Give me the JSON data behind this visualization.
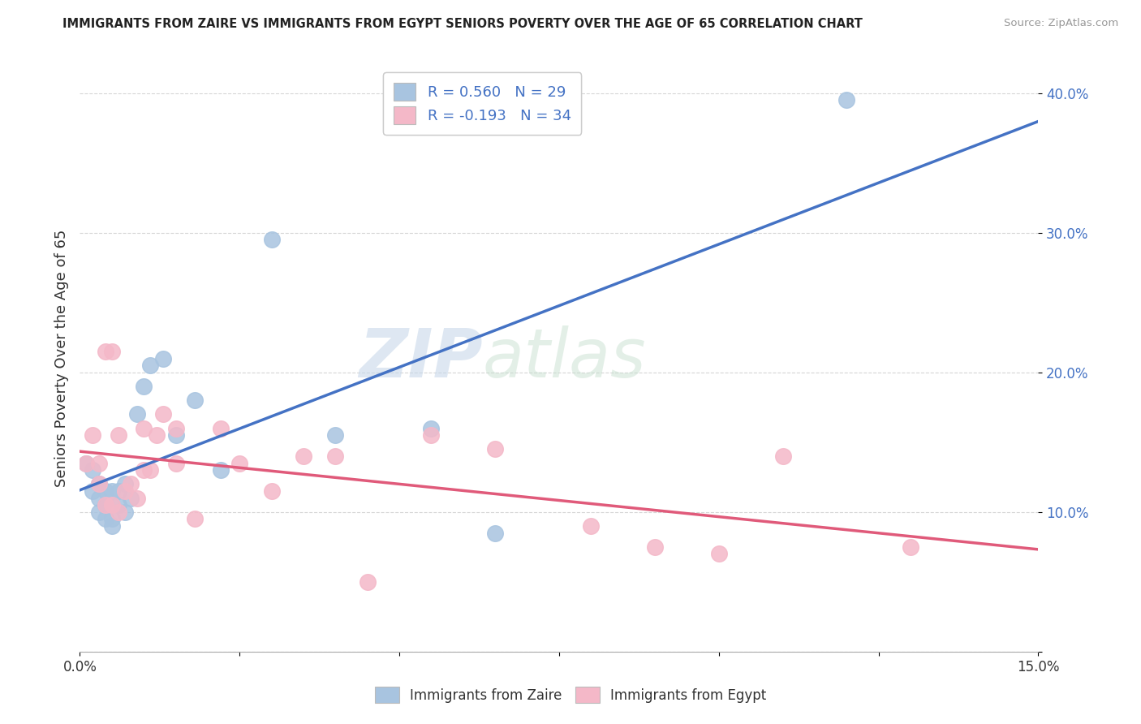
{
  "title": "IMMIGRANTS FROM ZAIRE VS IMMIGRANTS FROM EGYPT SENIORS POVERTY OVER THE AGE OF 65 CORRELATION CHART",
  "source": "Source: ZipAtlas.com",
  "ylabel": "Seniors Poverty Over the Age of 65",
  "xlim": [
    0,
    0.15
  ],
  "ylim": [
    0,
    0.42
  ],
  "zaire_R": 0.56,
  "zaire_N": 29,
  "egypt_R": -0.193,
  "egypt_N": 34,
  "zaire_color": "#a8c4e0",
  "egypt_color": "#f4b8c8",
  "zaire_line_color": "#4472c4",
  "egypt_line_color": "#e05a7a",
  "watermark_zip": "ZIP",
  "watermark_atlas": "atlas",
  "background_color": "#ffffff",
  "zaire_x": [
    0.001,
    0.002,
    0.002,
    0.003,
    0.003,
    0.003,
    0.004,
    0.004,
    0.004,
    0.005,
    0.005,
    0.005,
    0.006,
    0.006,
    0.007,
    0.007,
    0.008,
    0.009,
    0.01,
    0.011,
    0.013,
    0.015,
    0.018,
    0.022,
    0.03,
    0.04,
    0.055,
    0.065,
    0.12
  ],
  "zaire_y": [
    0.135,
    0.13,
    0.115,
    0.12,
    0.11,
    0.1,
    0.115,
    0.095,
    0.105,
    0.115,
    0.095,
    0.09,
    0.105,
    0.115,
    0.1,
    0.12,
    0.11,
    0.17,
    0.19,
    0.205,
    0.21,
    0.155,
    0.18,
    0.13,
    0.295,
    0.155,
    0.16,
    0.085,
    0.395
  ],
  "egypt_x": [
    0.001,
    0.002,
    0.003,
    0.003,
    0.004,
    0.004,
    0.005,
    0.005,
    0.006,
    0.006,
    0.007,
    0.008,
    0.009,
    0.01,
    0.01,
    0.011,
    0.012,
    0.013,
    0.015,
    0.015,
    0.018,
    0.022,
    0.025,
    0.03,
    0.035,
    0.04,
    0.045,
    0.055,
    0.065,
    0.08,
    0.09,
    0.1,
    0.11,
    0.13
  ],
  "egypt_y": [
    0.135,
    0.155,
    0.12,
    0.135,
    0.105,
    0.215,
    0.215,
    0.105,
    0.1,
    0.155,
    0.115,
    0.12,
    0.11,
    0.13,
    0.16,
    0.13,
    0.155,
    0.17,
    0.16,
    0.135,
    0.095,
    0.16,
    0.135,
    0.115,
    0.14,
    0.14,
    0.05,
    0.155,
    0.145,
    0.09,
    0.075,
    0.07,
    0.14,
    0.075
  ]
}
